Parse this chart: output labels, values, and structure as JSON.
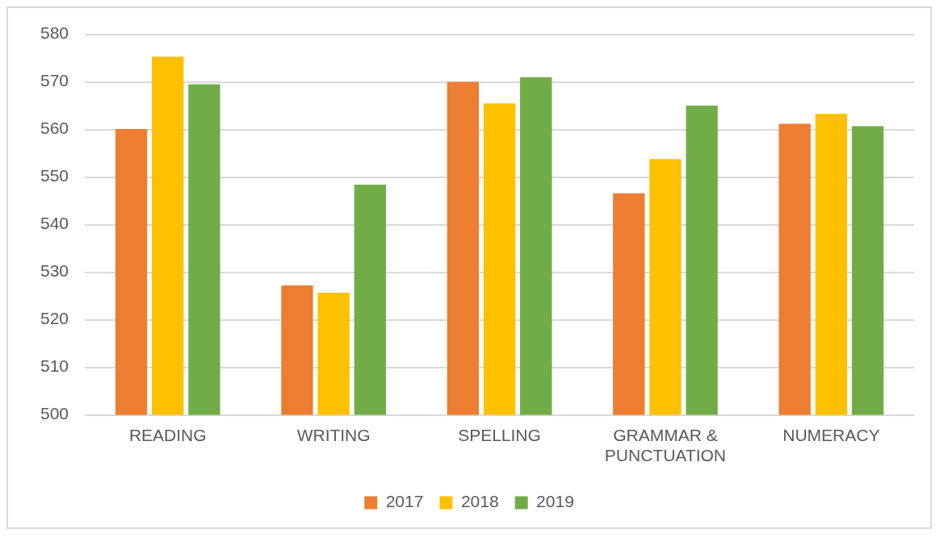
{
  "chart_data": {
    "type": "bar",
    "categories": [
      "READING",
      "WRITING",
      "SPELLING",
      "GRAMMAR & PUNCTUATION",
      "NUMERACY"
    ],
    "series": [
      {
        "name": "2017",
        "color": "#ed7d31",
        "values": [
          560.1,
          527.2,
          570.0,
          546.6,
          561.2
        ]
      },
      {
        "name": "2018",
        "color": "#ffc000",
        "values": [
          575.3,
          525.7,
          565.5,
          553.8,
          563.3
        ]
      },
      {
        "name": "2019",
        "color": "#70ad47",
        "values": [
          569.5,
          548.4,
          571.0,
          565.0,
          560.7
        ]
      }
    ],
    "ylim": [
      500,
      580
    ],
    "yticks": [
      500,
      510,
      520,
      530,
      540,
      550,
      560,
      570,
      580
    ],
    "grid": "y",
    "legend": "bottom"
  }
}
